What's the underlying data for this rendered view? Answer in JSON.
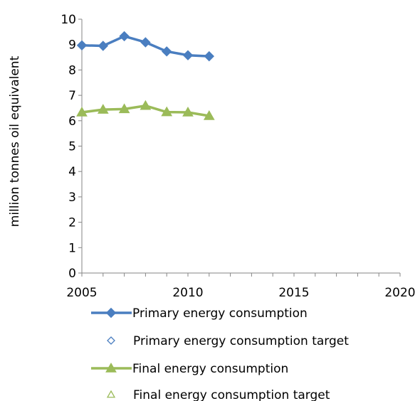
{
  "chart_data": {
    "type": "line",
    "ylabel": "million tonnes oil equivalent",
    "xlim": [
      2005,
      2020
    ],
    "ylim": [
      0,
      10
    ],
    "x_ticks": [
      2005,
      2010,
      2015,
      2020
    ],
    "y_ticks": [
      0,
      1,
      2,
      3,
      4,
      5,
      6,
      7,
      8,
      9,
      10
    ],
    "grid": false,
    "legend_position": "bottom",
    "series": [
      {
        "name": "Primary energy consumption",
        "color": "#4A7EC0",
        "marker": "diamond-filled",
        "x": [
          2005,
          2006,
          2007,
          2008,
          2009,
          2010,
          2011
        ],
        "y": [
          8.97,
          8.95,
          9.33,
          9.09,
          8.73,
          8.58,
          8.54
        ]
      },
      {
        "name": "Primary energy consumption target",
        "color": "#4A7EC0",
        "marker": "diamond-open",
        "x": [],
        "y": []
      },
      {
        "name": "Final energy consumption",
        "color": "#9BBB59",
        "marker": "triangle-filled",
        "x": [
          2005,
          2006,
          2007,
          2008,
          2009,
          2010,
          2011
        ],
        "y": [
          6.33,
          6.44,
          6.46,
          6.59,
          6.34,
          6.33,
          6.19
        ]
      },
      {
        "name": "Final energy consumption target",
        "color": "#9BBB59",
        "marker": "triangle-open",
        "x": [],
        "y": []
      }
    ]
  }
}
